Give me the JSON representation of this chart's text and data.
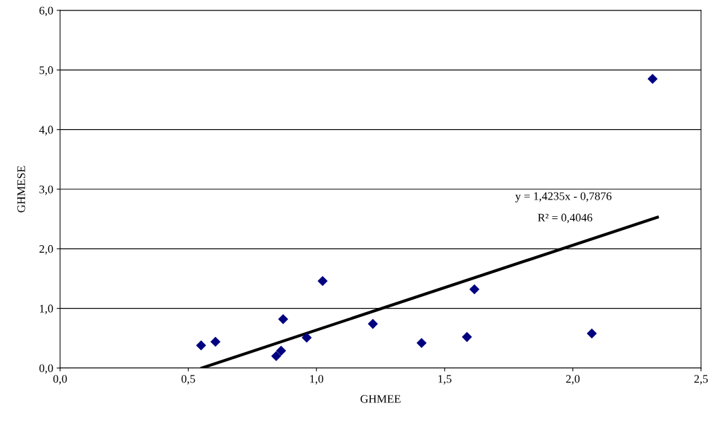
{
  "chart_data": {
    "type": "scatter",
    "xlabel": "GHMEE",
    "ylabel": "GHMESE",
    "series": [
      {
        "color": "#000080",
        "marker": "diamond",
        "x": [
          0.55,
          0.606,
          0.843,
          0.862,
          0.87,
          0.962,
          1.024,
          1.22,
          1.41,
          1.587,
          1.616,
          2.074,
          2.311
        ],
        "values": [
          0.38,
          0.44,
          0.2,
          0.29,
          0.82,
          0.51,
          1.46,
          0.74,
          0.42,
          0.52,
          1.32,
          0.58,
          4.85
        ]
      },
      {
        "type": "line",
        "color": "#000000",
        "marker": "none",
        "x": [
          0.553,
          2.33
        ],
        "values": [
          0.0,
          2.53
        ]
      }
    ],
    "xlim": [
      0,
      2.5
    ],
    "ylim": [
      0,
      6
    ],
    "xticks": [
      {
        "value": 0,
        "label": "0,0"
      },
      {
        "value": 0.5,
        "label": "0,5"
      },
      {
        "value": 1,
        "label": "1,0"
      },
      {
        "value": 1.5,
        "label": "1,5"
      },
      {
        "value": 2,
        "label": "2,0"
      },
      {
        "value": 2.5,
        "label": "2,5"
      }
    ],
    "yticks": [
      {
        "value": 0,
        "label": "0,0"
      },
      {
        "value": 1,
        "label": "1,0"
      },
      {
        "value": 2,
        "label": "2,0"
      },
      {
        "value": 3,
        "label": "3,0"
      },
      {
        "value": 4,
        "label": "4,0"
      },
      {
        "value": 5,
        "label": "5,0"
      },
      {
        "value": 6,
        "label": "6,0"
      }
    ],
    "grid": "y",
    "legend": false,
    "annotations": [
      "y = 1,4235x - 0,7876",
      "R² = 0,4046"
    ]
  }
}
